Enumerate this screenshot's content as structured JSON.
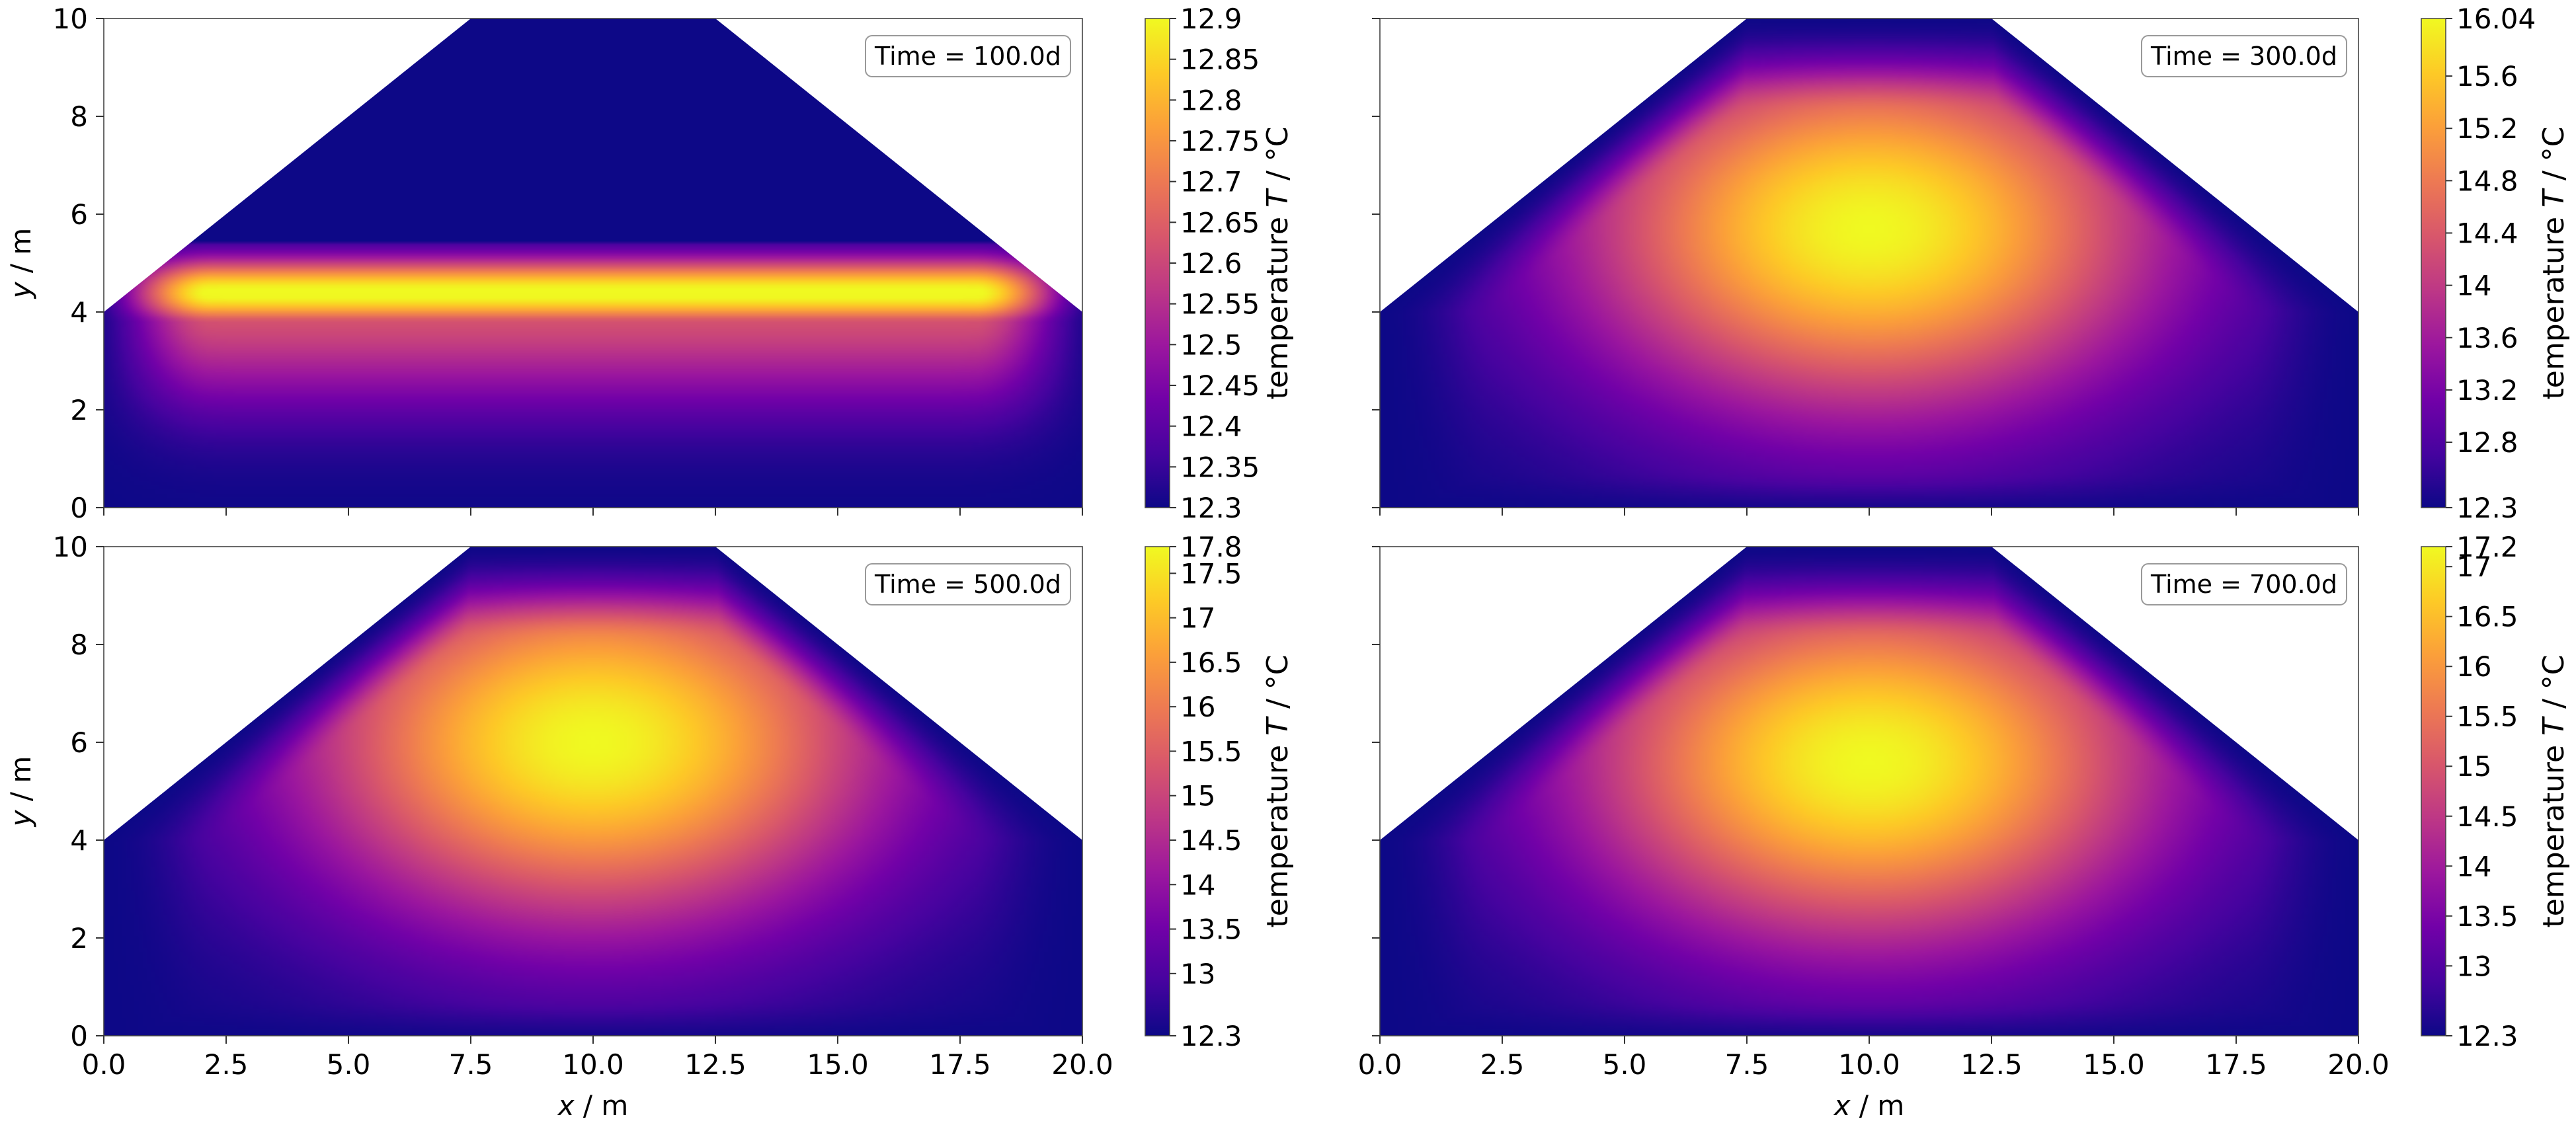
{
  "colormap": "plasma",
  "colormap_stops": [
    "#0d0887",
    "#46039f",
    "#7201a8",
    "#9c179e",
    "#bd3786",
    "#d8576b",
    "#ed7953",
    "#fb9f3a",
    "#fdca26",
    "#f0f921"
  ],
  "chart_data": [
    {
      "type": "heatmap",
      "time_label": "Time = 100.0d",
      "domain_polygon": [
        [
          0,
          0
        ],
        [
          20,
          0
        ],
        [
          20,
          4
        ],
        [
          12.5,
          10
        ],
        [
          7.5,
          10
        ],
        [
          0,
          4
        ]
      ],
      "xlim": [
        0,
        20
      ],
      "ylim": [
        0,
        10
      ],
      "xlabel_prefix": "x",
      "ylabel_prefix": "y",
      "axis_unit": " / m",
      "show_x_ticklabels": false,
      "show_y_ticklabels": true,
      "x_ticks": [
        "0.0",
        "2.5",
        "5.0",
        "7.5",
        "10.0",
        "12.5",
        "15.0",
        "17.5",
        "20.0"
      ],
      "y_ticks": [
        "0",
        "2",
        "4",
        "6",
        "8",
        "10"
      ],
      "colorbar": {
        "label_prefix": "temperature ",
        "label_symbol": "T",
        "label_unit": " / °C",
        "min": 12.3,
        "max": 12.9,
        "ticks": [
          "12.3",
          "12.35",
          "12.4",
          "12.45",
          "12.5",
          "12.55",
          "12.6",
          "12.65",
          "12.7",
          "12.75",
          "12.8",
          "12.85",
          "12.9"
        ]
      },
      "field": {
        "pattern": "heated_layer",
        "center": [
          10,
          4.4
        ],
        "layer_x_range": [
          0.8,
          19.2
        ],
        "layer_y_halfwidth": 0.55,
        "upper_cutoff_y": 5.4,
        "background": 12.3,
        "peak": 12.9
      }
    },
    {
      "type": "heatmap",
      "time_label": "Time = 300.0d",
      "domain_polygon": [
        [
          0,
          0
        ],
        [
          20,
          0
        ],
        [
          20,
          4
        ],
        [
          12.5,
          10
        ],
        [
          7.5,
          10
        ],
        [
          0,
          4
        ]
      ],
      "xlim": [
        0,
        20
      ],
      "ylim": [
        0,
        10
      ],
      "xlabel_prefix": "x",
      "ylabel_prefix": "y",
      "axis_unit": " / m",
      "show_x_ticklabels": false,
      "show_y_ticklabels": false,
      "x_ticks": [
        "0.0",
        "2.5",
        "5.0",
        "7.5",
        "10.0",
        "12.5",
        "15.0",
        "17.5",
        "20.0"
      ],
      "y_ticks": [
        "0",
        "2",
        "4",
        "6",
        "8",
        "10"
      ],
      "colorbar": {
        "label_prefix": "temperature ",
        "label_symbol": "T",
        "label_unit": " / °C",
        "min": 12.3,
        "max": 16.04,
        "ticks": [
          "12.3",
          "12.8",
          "13.2",
          "13.6",
          "14",
          "14.4",
          "14.8",
          "15.2",
          "15.6",
          "16.04"
        ]
      },
      "field": {
        "pattern": "diffusing_plume",
        "center": [
          10,
          5.7
        ],
        "background": 12.3,
        "peak": 16.04
      }
    },
    {
      "type": "heatmap",
      "time_label": "Time = 500.0d",
      "domain_polygon": [
        [
          0,
          0
        ],
        [
          20,
          0
        ],
        [
          20,
          4
        ],
        [
          12.5,
          10
        ],
        [
          7.5,
          10
        ],
        [
          0,
          4
        ]
      ],
      "xlim": [
        0,
        20
      ],
      "ylim": [
        0,
        10
      ],
      "xlabel_prefix": "x",
      "ylabel_prefix": "y",
      "axis_unit": " / m",
      "show_x_ticklabels": true,
      "show_y_ticklabels": true,
      "x_ticks": [
        "0.0",
        "2.5",
        "5.0",
        "7.5",
        "10.0",
        "12.5",
        "15.0",
        "17.5",
        "20.0"
      ],
      "y_ticks": [
        "0",
        "2",
        "4",
        "6",
        "8",
        "10"
      ],
      "colorbar": {
        "label_prefix": "temperature ",
        "label_symbol": "T",
        "label_unit": " / °C",
        "min": 12.3,
        "max": 17.8,
        "ticks": [
          "12.3",
          "13",
          "13.5",
          "14",
          "14.5",
          "15",
          "15.5",
          "16",
          "16.5",
          "17",
          "17.5",
          "17.8"
        ]
      },
      "field": {
        "pattern": "diffusing_plume",
        "center": [
          10,
          6.0
        ],
        "background": 12.3,
        "peak": 17.8
      }
    },
    {
      "type": "heatmap",
      "time_label": "Time = 700.0d",
      "domain_polygon": [
        [
          0,
          0
        ],
        [
          20,
          0
        ],
        [
          20,
          4
        ],
        [
          12.5,
          10
        ],
        [
          7.5,
          10
        ],
        [
          0,
          4
        ]
      ],
      "xlim": [
        0,
        20
      ],
      "ylim": [
        0,
        10
      ],
      "xlabel_prefix": "x",
      "ylabel_prefix": "y",
      "axis_unit": " / m",
      "show_x_ticklabels": true,
      "show_y_ticklabels": false,
      "x_ticks": [
        "0.0",
        "2.5",
        "5.0",
        "7.5",
        "10.0",
        "12.5",
        "15.0",
        "17.5",
        "20.0"
      ],
      "y_ticks": [
        "0",
        "2",
        "4",
        "6",
        "8",
        "10"
      ],
      "colorbar": {
        "label_prefix": "temperature ",
        "label_symbol": "T",
        "label_unit": " / °C",
        "min": 12.3,
        "max": 17.2,
        "ticks": [
          "12.3",
          "13",
          "13.5",
          "14",
          "14.5",
          "15",
          "15.5",
          "16",
          "16.5",
          "17",
          "17.2"
        ]
      },
      "field": {
        "pattern": "diffusing_plume",
        "center": [
          10,
          5.6
        ],
        "background": 12.3,
        "peak": 17.2
      }
    }
  ]
}
